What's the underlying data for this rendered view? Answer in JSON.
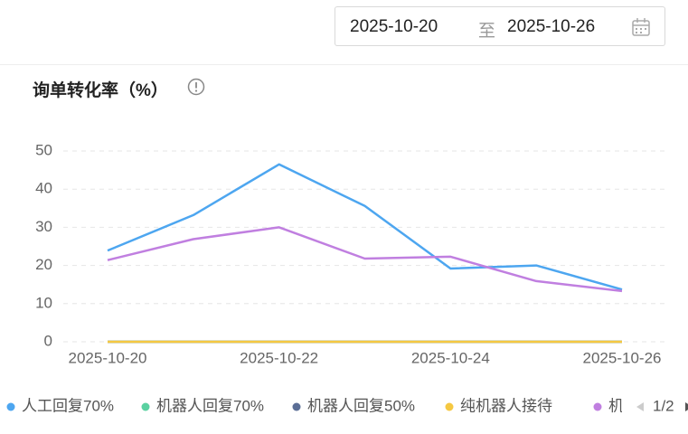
{
  "date_range": {
    "start": "2025-10-20",
    "separator": "至",
    "end": "2025-10-26"
  },
  "chart_data": {
    "type": "line",
    "title": "询单转化率（%）",
    "categories": [
      "2025-10-20",
      null,
      "2025-10-22",
      null,
      "2025-10-24",
      null,
      "2025-10-26"
    ],
    "ylim": [
      0,
      50
    ],
    "yticks": [
      0,
      10,
      20,
      30,
      40,
      50
    ],
    "grid": true,
    "series": [
      {
        "name": "人工回复70%",
        "color": "#4da6f0",
        "values": [
          23.9,
          33.2,
          46.5,
          35.6,
          19.2,
          20.0,
          13.7
        ]
      },
      {
        "name": "机器人回复70%",
        "color": "#5ad1a1",
        "values": [
          0,
          0,
          0,
          0,
          0,
          0,
          0
        ]
      },
      {
        "name": "机器人回复50%",
        "color": "#5b6e96",
        "values": [
          0,
          0,
          0,
          0,
          0,
          0,
          0
        ]
      },
      {
        "name": "纯机器人接待",
        "color": "#f5c842",
        "values": [
          0,
          0,
          0,
          0,
          0,
          0,
          0
        ]
      },
      {
        "name": "机器",
        "color": "#c07fe0",
        "values": [
          21.4,
          26.9,
          30.0,
          21.8,
          22.3,
          15.9,
          13.3
        ]
      }
    ],
    "legend_page": "1/2"
  }
}
